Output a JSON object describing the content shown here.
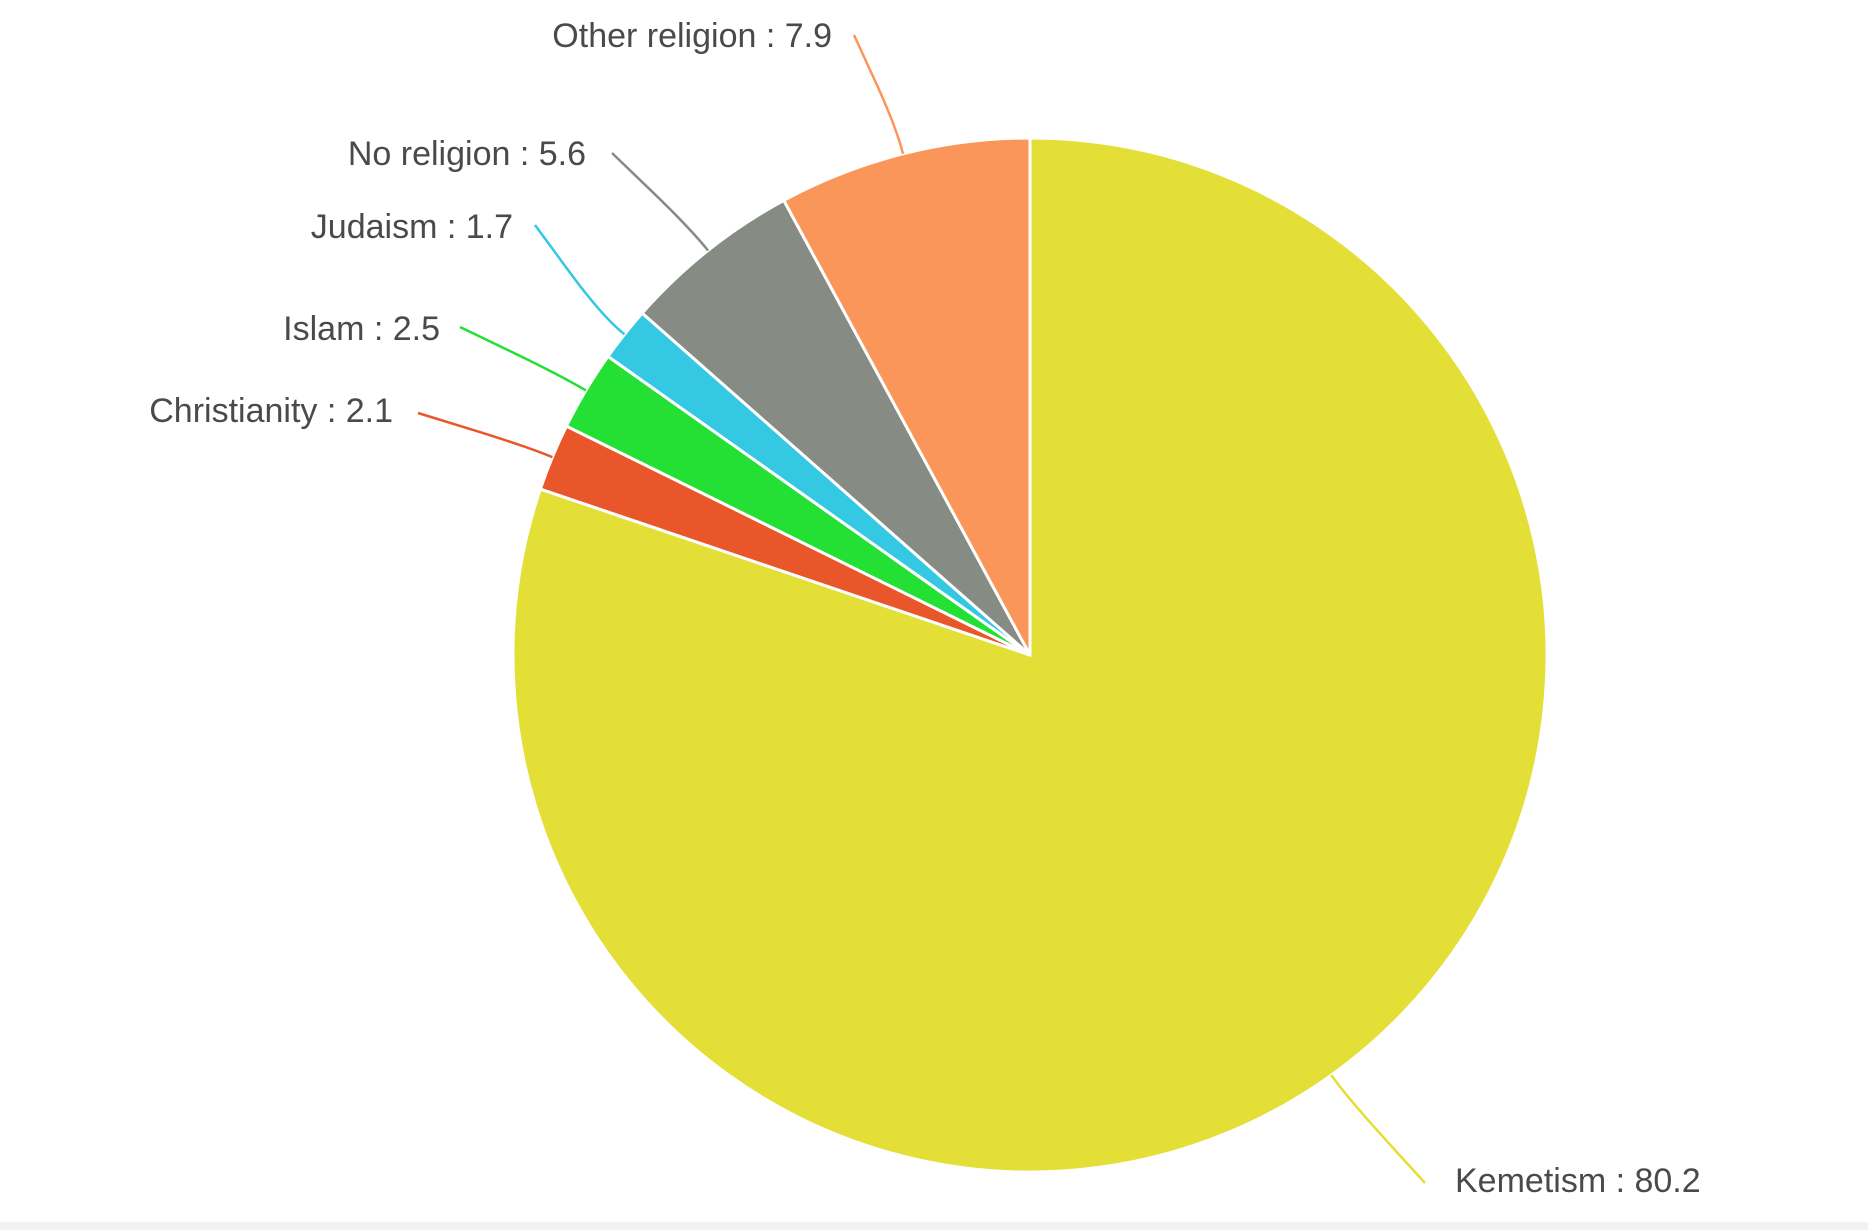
{
  "chart_data": {
    "type": "pie",
    "title": "",
    "slices": [
      {
        "label": "Kemetism",
        "value": 80.2,
        "display": "Kemetism : 80.2",
        "color": "#e3df36"
      },
      {
        "label": "Christianity",
        "value": 2.1,
        "display": "Christianity : 2.1",
        "color": "#e8562a"
      },
      {
        "label": "Islam",
        "value": 2.5,
        "display": "Islam : 2.5",
        "color": "#24e034"
      },
      {
        "label": "Judaism",
        "value": 1.7,
        "display": "Judaism : 1.7",
        "color": "#34c8e3"
      },
      {
        "label": "No religion",
        "value": 5.6,
        "display": "No religion : 5.6",
        "color": "#868b83"
      },
      {
        "label": "Other religion",
        "value": 7.9,
        "display": "Other religion : 7.9",
        "color": "#fb965b"
      }
    ],
    "start_angle": "12 o'clock",
    "direction": "clockwise",
    "legend": "none (inline labels with leader lines)"
  }
}
